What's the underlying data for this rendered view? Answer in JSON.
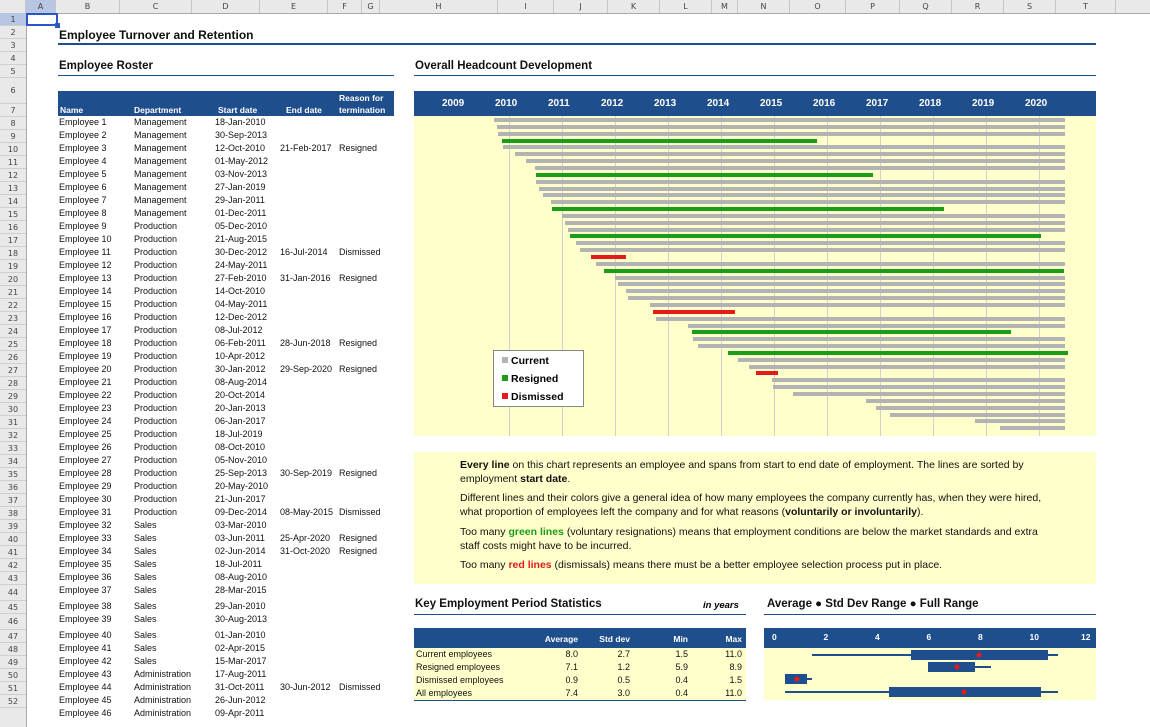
{
  "sheet": {
    "columns": [
      "A",
      "B",
      "C",
      "D",
      "E",
      "F",
      "G",
      "H",
      "I",
      "J",
      "K",
      "L",
      "M",
      "N",
      "O",
      "P",
      "Q",
      "R",
      "S",
      "T"
    ],
    "rows": [
      "1",
      "2",
      "3",
      "4",
      "5",
      "6",
      "7",
      "8",
      "9",
      "10",
      "11",
      "12",
      "13",
      "14",
      "15",
      "16",
      "17",
      "18",
      "19",
      "20",
      "21",
      "22",
      "23",
      "24",
      "25",
      "26",
      "27",
      "28",
      "29",
      "30",
      "31",
      "32",
      "33",
      "34",
      "35",
      "36",
      "37",
      "38",
      "39",
      "40",
      "41",
      "42",
      "43",
      "44",
      "45",
      "46",
      "47",
      "48",
      "49",
      "50",
      "51",
      "52"
    ]
  },
  "page_title": "Employee Turnover and Retention",
  "roster": {
    "title": "Employee Roster",
    "headers": {
      "name": "Name",
      "department": "Department",
      "start": "Start date",
      "end": "End date",
      "reason_l1": "Reason for",
      "reason_l2": "termination"
    },
    "rows": [
      [
        "Employee 1",
        "Management",
        "18-Jan-2010",
        "",
        ""
      ],
      [
        "Employee 2",
        "Management",
        "30-Sep-2013",
        "",
        ""
      ],
      [
        "Employee 3",
        "Management",
        "12-Oct-2010",
        "21-Feb-2017",
        "Resigned"
      ],
      [
        "Employee 4",
        "Management",
        "01-May-2012",
        "",
        ""
      ],
      [
        "Employee 5",
        "Management",
        "03-Nov-2013",
        "",
        ""
      ],
      [
        "Employee 6",
        "Management",
        "27-Jan-2019",
        "",
        ""
      ],
      [
        "Employee 7",
        "Management",
        "29-Jan-2011",
        "",
        ""
      ],
      [
        "Employee 8",
        "Management",
        "01-Dec-2011",
        "",
        ""
      ],
      [
        "Employee 9",
        "Production",
        "05-Dec-2010",
        "",
        ""
      ],
      [
        "Employee 10",
        "Production",
        "21-Aug-2015",
        "",
        ""
      ],
      [
        "Employee 11",
        "Production",
        "30-Dec-2012",
        "16-Jul-2014",
        "Dismissed"
      ],
      [
        "Employee 12",
        "Production",
        "24-May-2011",
        "",
        ""
      ],
      [
        "Employee 13",
        "Production",
        "27-Feb-2010",
        "31-Jan-2016",
        "Resigned"
      ],
      [
        "Employee 14",
        "Production",
        "14-Oct-2010",
        "",
        ""
      ],
      [
        "Employee 15",
        "Production",
        "04-May-2011",
        "",
        ""
      ],
      [
        "Employee 16",
        "Production",
        "12-Dec-2012",
        "",
        ""
      ],
      [
        "Employee 17",
        "Production",
        "08-Jul-2012",
        "",
        ""
      ],
      [
        "Employee 18",
        "Production",
        "06-Feb-2011",
        "28-Jun-2018",
        "Resigned"
      ],
      [
        "Employee 19",
        "Production",
        "10-Apr-2012",
        "",
        ""
      ],
      [
        "Employee 20",
        "Production",
        "30-Jan-2012",
        "29-Sep-2020",
        "Resigned"
      ],
      [
        "Employee 21",
        "Production",
        "08-Aug-2014",
        "",
        ""
      ],
      [
        "Employee 22",
        "Production",
        "20-Oct-2014",
        "",
        ""
      ],
      [
        "Employee 23",
        "Production",
        "20-Jan-2013",
        "",
        ""
      ],
      [
        "Employee 24",
        "Production",
        "06-Jan-2017",
        "",
        ""
      ],
      [
        "Employee 25",
        "Production",
        "18-Jul-2019",
        "",
        ""
      ],
      [
        "Employee 26",
        "Production",
        "08-Oct-2010",
        "",
        ""
      ],
      [
        "Employee 27",
        "Production",
        "05-Nov-2010",
        "",
        ""
      ],
      [
        "Employee 28",
        "Production",
        "25-Sep-2013",
        "30-Sep-2019",
        "Resigned"
      ],
      [
        "Employee 29",
        "Production",
        "20-May-2010",
        "",
        ""
      ],
      [
        "Employee 30",
        "Production",
        "21-Jun-2017",
        "",
        ""
      ],
      [
        "Employee 31",
        "Production",
        "09-Dec-2014",
        "08-May-2015",
        "Dismissed"
      ],
      [
        "Employee 32",
        "Sales",
        "03-Mar-2010",
        "",
        ""
      ],
      [
        "Employee 33",
        "Sales",
        "03-Jun-2011",
        "25-Apr-2020",
        "Resigned"
      ],
      [
        "Employee 34",
        "Sales",
        "02-Jun-2014",
        "31-Oct-2020",
        "Resigned"
      ],
      [
        "Employee 35",
        "Sales",
        "18-Jul-2011",
        "",
        ""
      ],
      [
        "Employee 36",
        "Sales",
        "08-Aug-2010",
        "",
        ""
      ],
      [
        "Employee 37",
        "Sales",
        "28-Mar-2015",
        "",
        ""
      ],
      [
        "Employee 38",
        "Sales",
        "29-Jan-2010",
        "",
        ""
      ],
      [
        "Employee 39",
        "Sales",
        "30-Aug-2013",
        "",
        ""
      ],
      [
        "Employee 40",
        "Sales",
        "01-Jan-2010",
        "",
        ""
      ],
      [
        "Employee 41",
        "Sales",
        "02-Apr-2015",
        "",
        ""
      ],
      [
        "Employee 42",
        "Sales",
        "15-Mar-2017",
        "",
        ""
      ],
      [
        "Employee 43",
        "Administration",
        "17-Aug-2011",
        "",
        ""
      ],
      [
        "Employee 44",
        "Administration",
        "31-Oct-2011",
        "30-Jun-2012",
        "Dismissed"
      ],
      [
        "Employee 45",
        "Administration",
        "26-Jun-2012",
        "",
        ""
      ],
      [
        "Employee 46",
        "Administration",
        "09-Apr-2011",
        "",
        ""
      ]
    ]
  },
  "headcount": {
    "title": "Overall Headcount Development",
    "years": [
      "2009",
      "2010",
      "2011",
      "2012",
      "2013",
      "2014",
      "2015",
      "2016",
      "2017",
      "2018",
      "2019",
      "2020"
    ],
    "legend": [
      {
        "label": "Current",
        "color": "#b3b3b3"
      },
      {
        "label": "Resigned",
        "color": "#1a9e1a"
      },
      {
        "label": "Dismissed",
        "color": "#e31b1b"
      }
    ],
    "colors": {
      "current": "#b3b3b3",
      "resigned": "#1a9e1a",
      "dismissed": "#e31b1b",
      "plot_bg": "#ffffcc",
      "header": "#1f4e8c"
    }
  },
  "notes": {
    "p1_bold": "Every line",
    "p1_a": " on this chart represents an employee and spans from start to end date of employment. The lines are sorted by employment ",
    "p1_bold2": "start date",
    "p1_b": ".",
    "p2_a": "Different lines and their colors give a general idea of how many employees the company currently has, when they were hired, what proportion of employees left the company and for what reasons (",
    "p2_bold": "voluntarily or involuntarily",
    "p2_b": ").",
    "p3_a": "Too many ",
    "p3_green": "green lines",
    "p3_b": " (voluntary resignations) means that employment conditions are below the market standards and extra staff costs might have to be incurred.",
    "p4_a": "Too many ",
    "p4_red": "red lines",
    "p4_b": " (dismissals) means there must be a better employee selection process put in place."
  },
  "stats": {
    "title": "Key Employment Period Statistics",
    "unit": "in years",
    "headers": [
      "Average",
      "Std dev",
      "Min",
      "Max"
    ],
    "rows": [
      {
        "label": "Current employees",
        "avg": "8.0",
        "sd": "2.7",
        "min": "1.5",
        "max": "11.0"
      },
      {
        "label": "Resigned employees",
        "avg": "7.1",
        "sd": "1.2",
        "min": "5.9",
        "max": "8.9"
      },
      {
        "label": "Dismissed employees",
        "avg": "0.9",
        "sd": "0.5",
        "min": "0.4",
        "max": "1.5"
      },
      {
        "label": "All employees",
        "avg": "7.4",
        "sd": "3.0",
        "min": "0.4",
        "max": "11.0"
      }
    ]
  },
  "range_chart": {
    "title": "Average ● Std Dev Range ● Full Range",
    "ticks": [
      "0",
      "2",
      "4",
      "6",
      "8",
      "10",
      "12"
    ]
  },
  "chart_data": {
    "type": "bar",
    "title": "Overall Headcount Development",
    "x_axis": [
      "2009",
      "2010",
      "2011",
      "2012",
      "2013",
      "2014",
      "2015",
      "2016",
      "2017",
      "2018",
      "2019",
      "2020"
    ],
    "note": "Gantt of employment spans, one line per employee sorted by start date",
    "series": [
      {
        "name": "Current",
        "color": "#b3b3b3"
      },
      {
        "name": "Resigned",
        "color": "#1a9e1a"
      },
      {
        "name": "Dismissed",
        "color": "#e31b1b"
      }
    ]
  }
}
